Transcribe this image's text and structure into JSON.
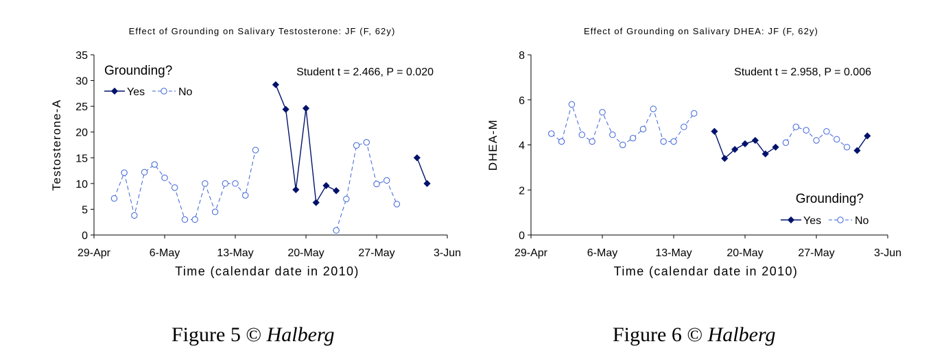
{
  "figures": [
    {
      "caption_prefix": "Figure 5 © ",
      "caption_author": "Halberg",
      "chart_data": {
        "type": "line",
        "title": "Effect of Grounding on Salivary Testosterone: JF (F, 62y)",
        "xlabel": "Time (calendar date in 2010)",
        "ylabel": "Testosterone-A",
        "xlim": [
          "2010-04-29",
          "2010-06-03"
        ],
        "x_ticks": [
          "29-Apr",
          "6-May",
          "13-May",
          "20-May",
          "27-May",
          "3-Jun"
        ],
        "ylim": [
          0,
          35
        ],
        "y_ticks": [
          "0",
          "5",
          "10",
          "15",
          "20",
          "25",
          "30",
          "35"
        ],
        "grid": false,
        "annotation": "Student t = 2.466, P = 0.020",
        "legend": {
          "title": "Grounding?",
          "yes_label": "Yes",
          "no_label": "No",
          "position": "top-left"
        },
        "series": [
          {
            "name": "No",
            "segments": [
              [
                [
                  "2010-05-01",
                  7.1
                ],
                [
                  "2010-05-02",
                  12.1
                ],
                [
                  "2010-05-03",
                  3.8
                ],
                [
                  "2010-05-04",
                  12.2
                ],
                [
                  "2010-05-05",
                  13.7
                ],
                [
                  "2010-05-06",
                  11.1
                ],
                [
                  "2010-05-07",
                  9.2
                ],
                [
                  "2010-05-08",
                  3.0
                ],
                [
                  "2010-05-09",
                  3.0
                ],
                [
                  "2010-05-10",
                  10.0
                ],
                [
                  "2010-05-11",
                  4.5
                ],
                [
                  "2010-05-12",
                  10.0
                ],
                [
                  "2010-05-13",
                  10.0
                ],
                [
                  "2010-05-14",
                  7.7
                ],
                [
                  "2010-05-15",
                  16.5
                ]
              ],
              [
                [
                  "2010-05-23",
                  0.9
                ],
                [
                  "2010-05-24",
                  7.0
                ],
                [
                  "2010-05-25",
                  17.4
                ],
                [
                  "2010-05-26",
                  18.0
                ],
                [
                  "2010-05-27",
                  9.9
                ],
                [
                  "2010-05-28",
                  10.6
                ],
                [
                  "2010-05-29",
                  6.0
                ]
              ]
            ]
          },
          {
            "name": "Yes",
            "segments": [
              [
                [
                  "2010-05-17",
                  29.2
                ],
                [
                  "2010-05-18",
                  24.4
                ],
                [
                  "2010-05-19",
                  8.8
                ],
                [
                  "2010-05-20",
                  24.6
                ],
                [
                  "2010-05-21",
                  6.3
                ],
                [
                  "2010-05-22",
                  9.6
                ],
                [
                  "2010-05-23",
                  8.6
                ]
              ],
              [
                [
                  "2010-05-31",
                  15.0
                ],
                [
                  "2010-06-01",
                  10.0
                ]
              ]
            ]
          }
        ]
      }
    },
    {
      "caption_prefix": "Figure 6 © ",
      "caption_author": "Halberg",
      "chart_data": {
        "type": "line",
        "title": "Effect of Grounding on Salivary DHEA: JF (F, 62y)",
        "xlabel": "Time (calendar date in 2010)",
        "ylabel": "DHEA-M",
        "xlim": [
          "2010-04-29",
          "2010-06-03"
        ],
        "x_ticks": [
          "29-Apr",
          "6-May",
          "13-May",
          "20-May",
          "27-May",
          "3-Jun"
        ],
        "ylim": [
          0,
          8
        ],
        "y_ticks": [
          "0",
          "2",
          "4",
          "6",
          "8"
        ],
        "grid": false,
        "annotation": "Student t = 2.958, P = 0.006",
        "legend": {
          "title": "Grounding?",
          "yes_label": "Yes",
          "no_label": "No",
          "position": "bottom-right"
        },
        "series": [
          {
            "name": "No",
            "segments": [
              [
                [
                  "2010-05-01",
                  4.5
                ],
                [
                  "2010-05-02",
                  4.15
                ],
                [
                  "2010-05-03",
                  5.8
                ],
                [
                  "2010-05-04",
                  4.45
                ],
                [
                  "2010-05-05",
                  4.15
                ],
                [
                  "2010-05-06",
                  5.45
                ],
                [
                  "2010-05-07",
                  4.45
                ],
                [
                  "2010-05-08",
                  4.0
                ],
                [
                  "2010-05-09",
                  4.3
                ],
                [
                  "2010-05-10",
                  4.7
                ],
                [
                  "2010-05-11",
                  5.6
                ],
                [
                  "2010-05-12",
                  4.15
                ],
                [
                  "2010-05-13",
                  4.15
                ],
                [
                  "2010-05-14",
                  4.8
                ],
                [
                  "2010-05-15",
                  5.4
                ]
              ],
              [
                [
                  "2010-05-24",
                  4.1
                ],
                [
                  "2010-05-25",
                  4.8
                ],
                [
                  "2010-05-26",
                  4.65
                ],
                [
                  "2010-05-27",
                  4.2
                ],
                [
                  "2010-05-28",
                  4.6
                ],
                [
                  "2010-05-29",
                  4.25
                ],
                [
                  "2010-05-30",
                  3.9
                ]
              ]
            ]
          },
          {
            "name": "Yes",
            "segments": [
              [
                [
                  "2010-05-17",
                  4.6
                ],
                [
                  "2010-05-18",
                  3.4
                ],
                [
                  "2010-05-19",
                  3.8
                ],
                [
                  "2010-05-20",
                  4.05
                ],
                [
                  "2010-05-21",
                  4.2
                ],
                [
                  "2010-05-22",
                  3.6
                ],
                [
                  "2010-05-23",
                  3.9
                ]
              ],
              [
                [
                  "2010-05-31",
                  3.75
                ],
                [
                  "2010-06-01",
                  4.4
                ]
              ]
            ]
          }
        ]
      }
    }
  ]
}
